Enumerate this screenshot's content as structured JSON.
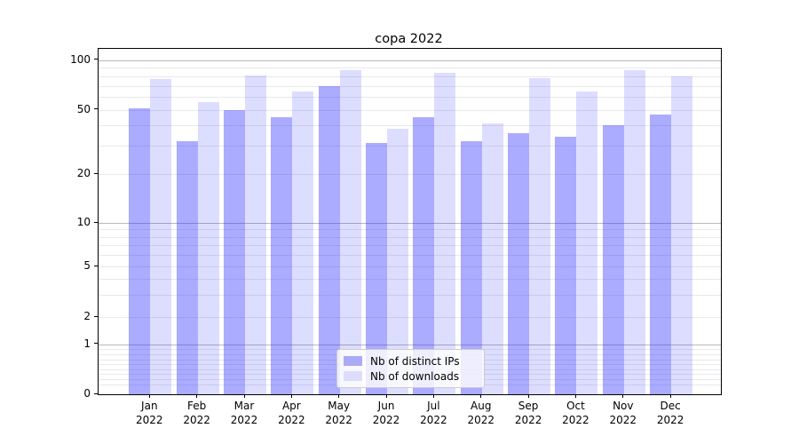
{
  "chart_data": {
    "type": "bar",
    "title": "copa 2022",
    "xlabel": "",
    "ylabel": "",
    "yscale": "symlog (log above 1, linear 0-1)",
    "ylim": [
      0,
      100
    ],
    "yticks": [
      0,
      1,
      2,
      5,
      10,
      20,
      50,
      100
    ],
    "ytick_labels": [
      "0",
      "1",
      "2",
      "5",
      "10",
      "20",
      "50",
      "100"
    ],
    "grid": true,
    "legend_position": "lower center",
    "categories": [
      "Jan 2022",
      "Feb 2022",
      "Mar 2022",
      "Apr 2022",
      "May 2022",
      "Jun 2022",
      "Jul 2022",
      "Aug 2022",
      "Sep 2022",
      "Oct 2022",
      "Nov 2022",
      "Dec 2022"
    ],
    "series": [
      {
        "name": "Nb of distinct IPs",
        "color": "rgba(50,50,255,0.41)",
        "solid_color": "#aaaaf6",
        "values": [
          51,
          32,
          50,
          45,
          70,
          31,
          45,
          32,
          36,
          34,
          40,
          47
        ]
      },
      {
        "name": "Nb of downloads",
        "color": "rgba(50,50,255,0.165)",
        "solid_color": "#ddddfb",
        "values": [
          77,
          56,
          81,
          65,
          87,
          38,
          84,
          41,
          78,
          65,
          87,
          80
        ]
      }
    ],
    "gridline_major_values": [
      1,
      10,
      100
    ],
    "gridline_minor_values": [
      0.2,
      0.3,
      0.4,
      0.5,
      0.6,
      0.7,
      0.8,
      0.9,
      2,
      3,
      4,
      5,
      6,
      7,
      8,
      9,
      20,
      30,
      40,
      50,
      60,
      70,
      80,
      90
    ],
    "colors": {
      "axis": "#000000",
      "major_grid": "#b8b8b8",
      "minor_grid": "#e9e9ee",
      "text": "#000000",
      "legend_border": "#cccccc"
    }
  }
}
